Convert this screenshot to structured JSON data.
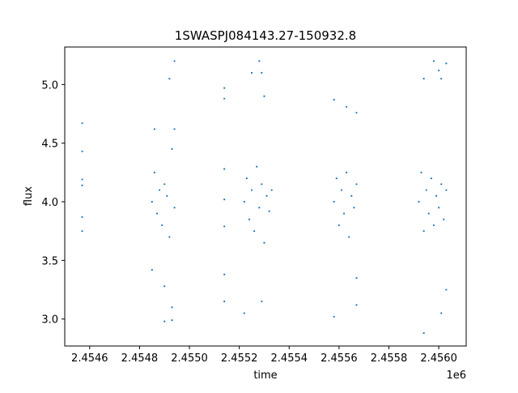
{
  "chart_data": {
    "type": "scatter",
    "title": "1SWASPJ084143.27-150932.8",
    "xlabel": "time",
    "ylabel": "flux",
    "x_offset_label": "1e6",
    "xlim": [
      2.4545,
      2.45611
    ],
    "ylim": [
      2.77,
      5.32
    ],
    "x_ticks": [
      2.4546,
      2.4548,
      2.455,
      2.4552,
      2.4554,
      2.4556,
      2.4558,
      2.456
    ],
    "x_tick_labels": [
      "2.4546",
      "2.4548",
      "2.4550",
      "2.4552",
      "2.4554",
      "2.4556",
      "2.4558",
      "2.4560"
    ],
    "y_ticks": [
      3.0,
      3.5,
      4.0,
      4.5,
      5.0
    ],
    "y_tick_labels": [
      "3.0",
      "3.5",
      "4.0",
      "4.5",
      "5.0"
    ],
    "grid": false,
    "legend": "none",
    "marker_color": "#1f77b4",
    "series": [
      {
        "points": [
          [
            2.45457,
            4.67
          ],
          [
            2.45457,
            4.43
          ],
          [
            2.45457,
            4.19
          ],
          [
            2.45457,
            4.14
          ],
          [
            2.45457,
            3.87
          ],
          [
            2.45457,
            3.75
          ],
          [
            2.45485,
            4.0
          ],
          [
            2.45486,
            4.25
          ],
          [
            2.45487,
            3.9
          ],
          [
            2.45488,
            4.1
          ],
          [
            2.45489,
            3.8
          ],
          [
            2.4549,
            4.15
          ],
          [
            2.45491,
            4.05
          ],
          [
            2.45492,
            3.7
          ],
          [
            2.45493,
            4.45
          ],
          [
            2.45494,
            3.95
          ],
          [
            2.45485,
            3.42
          ],
          [
            2.45486,
            4.62
          ],
          [
            2.4549,
            3.28
          ],
          [
            2.45492,
            5.05
          ],
          [
            2.45493,
            3.1
          ],
          [
            2.45494,
            5.2
          ],
          [
            2.4549,
            2.98
          ],
          [
            2.45493,
            2.99
          ],
          [
            2.45494,
            4.62
          ],
          [
            2.45514,
            4.97
          ],
          [
            2.45514,
            4.88
          ],
          [
            2.45514,
            4.28
          ],
          [
            2.45514,
            4.02
          ],
          [
            2.45514,
            3.79
          ],
          [
            2.45514,
            3.38
          ],
          [
            2.45514,
            3.15
          ],
          [
            2.45522,
            4.0
          ],
          [
            2.45523,
            4.2
          ],
          [
            2.45524,
            3.85
          ],
          [
            2.45525,
            4.1
          ],
          [
            2.45526,
            3.75
          ],
          [
            2.45527,
            4.3
          ],
          [
            2.45528,
            3.95
          ],
          [
            2.45529,
            4.15
          ],
          [
            2.4553,
            3.65
          ],
          [
            2.45531,
            4.05
          ],
          [
            2.45522,
            3.05
          ],
          [
            2.45525,
            5.1
          ],
          [
            2.45528,
            5.2
          ],
          [
            2.45529,
            5.1
          ],
          [
            2.45529,
            3.15
          ],
          [
            2.4553,
            4.9
          ],
          [
            2.45532,
            3.92
          ],
          [
            2.45533,
            4.1
          ],
          [
            2.45558,
            4.0
          ],
          [
            2.45559,
            4.2
          ],
          [
            2.4556,
            3.8
          ],
          [
            2.45561,
            4.1
          ],
          [
            2.45562,
            3.9
          ],
          [
            2.45563,
            4.25
          ],
          [
            2.45564,
            3.7
          ],
          [
            2.45565,
            4.05
          ],
          [
            2.45566,
            3.95
          ],
          [
            2.45567,
            4.15
          ],
          [
            2.45558,
            4.87
          ],
          [
            2.45558,
            3.02
          ],
          [
            2.45563,
            4.81
          ],
          [
            2.45567,
            4.76
          ],
          [
            2.45567,
            3.12
          ],
          [
            2.45567,
            3.35
          ],
          [
            2.45592,
            4.0
          ],
          [
            2.45593,
            4.25
          ],
          [
            2.45594,
            3.75
          ],
          [
            2.45595,
            4.1
          ],
          [
            2.45596,
            3.9
          ],
          [
            2.45597,
            4.2
          ],
          [
            2.45598,
            3.8
          ],
          [
            2.45599,
            4.05
          ],
          [
            2.456,
            3.95
          ],
          [
            2.45601,
            4.15
          ],
          [
            2.45602,
            3.85
          ],
          [
            2.45603,
            4.1
          ],
          [
            2.45594,
            5.05
          ],
          [
            2.45594,
            2.88
          ],
          [
            2.45598,
            5.2
          ],
          [
            2.456,
            5.12
          ],
          [
            2.45601,
            5.05
          ],
          [
            2.45601,
            3.05
          ],
          [
            2.45603,
            3.25
          ],
          [
            2.45603,
            5.18
          ]
        ]
      }
    ]
  }
}
